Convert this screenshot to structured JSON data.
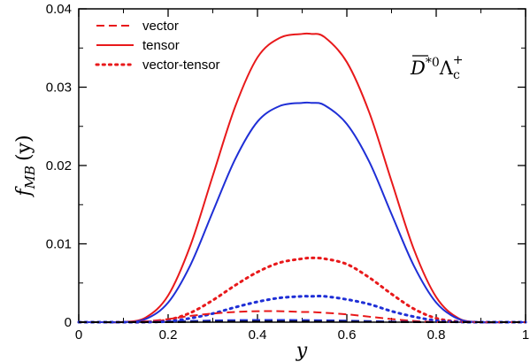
{
  "chart_data": {
    "type": "line",
    "title": "",
    "xlabel": "y",
    "ylabel": "f_MB (y)",
    "ylabel_main": "f",
    "ylabel_sub": "MB",
    "ylabel_arg": "(y)",
    "xlim": [
      0,
      1
    ],
    "ylim": [
      0,
      0.04
    ],
    "x_ticks": [
      0,
      0.2,
      0.4,
      0.6,
      0.8,
      1
    ],
    "x_tick_labels": [
      "0",
      "0.2",
      "0.4",
      "0.6",
      "0.8",
      "1"
    ],
    "y_ticks": [
      0,
      0.01,
      0.02,
      0.03,
      0.04
    ],
    "y_tick_labels": [
      "0",
      "0.01",
      "0.02",
      "0.03",
      "0.04"
    ],
    "grid": false,
    "legend_position": "top-left",
    "legend": [
      {
        "label": "vector",
        "style": "dashed",
        "color": "#e8191b"
      },
      {
        "label": "tensor",
        "style": "solid",
        "color": "#e8191b"
      },
      {
        "label": "vector-tensor",
        "style": "dotted",
        "color": "#e8191b"
      }
    ],
    "annotation": {
      "particle": "D",
      "star0": "*0",
      "lambda": "Λ",
      "sub": "c",
      "sup": "+"
    },
    "x": [
      0,
      0.05,
      0.1,
      0.15,
      0.2,
      0.25,
      0.3,
      0.35,
      0.4,
      0.45,
      0.5,
      0.52,
      0.55,
      0.6,
      0.65,
      0.7,
      0.75,
      0.8,
      0.85,
      0.9,
      0.95,
      1
    ],
    "series": [
      {
        "style": "solid",
        "color": "#e8191b",
        "values": [
          0,
          0,
          2e-05,
          0.0006,
          0.0034,
          0.0098,
          0.0187,
          0.0275,
          0.0338,
          0.0363,
          0.0368,
          0.0368,
          0.0364,
          0.0332,
          0.0268,
          0.018,
          0.0093,
          0.0032,
          0.0005,
          0,
          0,
          0
        ]
      },
      {
        "style": "solid",
        "color": "#1f2fd6",
        "values": [
          0,
          0,
          1e-05,
          0.0004,
          0.0025,
          0.0073,
          0.0141,
          0.0208,
          0.0256,
          0.0276,
          0.028,
          0.028,
          0.0277,
          0.0253,
          0.0205,
          0.0138,
          0.0072,
          0.0025,
          0.0004,
          0,
          0,
          0
        ]
      },
      {
        "style": "dotted",
        "color": "#e8191b",
        "values": [
          0,
          0,
          0,
          2e-05,
          0.0003,
          0.0012,
          0.0028,
          0.0047,
          0.0064,
          0.0076,
          0.0081,
          0.0082,
          0.0081,
          0.0074,
          0.0057,
          0.0036,
          0.0017,
          0.0005,
          8e-05,
          0,
          0,
          0
        ]
      },
      {
        "style": "dotted",
        "color": "#1f2fd6",
        "values": [
          0,
          0,
          0,
          1e-05,
          0.0001,
          0.0005,
          0.0011,
          0.0019,
          0.0026,
          0.0031,
          0.0033,
          0.0033,
          0.0033,
          0.0029,
          0.0023,
          0.0014,
          0.0007,
          0.0002,
          3e-05,
          0,
          0,
          0
        ]
      },
      {
        "style": "dashed",
        "color": "#e8191b",
        "values": [
          0,
          0,
          2e-05,
          0.0001,
          0.0004,
          0.0008,
          0.0011,
          0.0013,
          0.0014,
          0.0014,
          0.0013,
          0.0013,
          0.0012,
          0.001,
          0.0007,
          0.0004,
          0.00015,
          3e-05,
          0,
          0,
          0,
          0
        ]
      },
      {
        "style": "dashed",
        "color": "#1f2fd6",
        "values": [
          0,
          0,
          0,
          2e-05,
          8e-05,
          0.00015,
          0.00022,
          0.00026,
          0.00028,
          0.00028,
          0.00027,
          0.00026,
          0.00024,
          0.0002,
          0.00014,
          8e-05,
          3e-05,
          1e-05,
          0,
          0,
          0,
          0
        ]
      },
      {
        "style": "dashed",
        "color": "#000000",
        "values": [
          0,
          0,
          0,
          0,
          1e-05,
          3e-05,
          5e-05,
          7e-05,
          8e-05,
          8e-05,
          8e-05,
          8e-05,
          7e-05,
          6e-05,
          4e-05,
          2e-05,
          1e-05,
          0,
          0,
          0,
          0,
          0
        ]
      }
    ]
  }
}
